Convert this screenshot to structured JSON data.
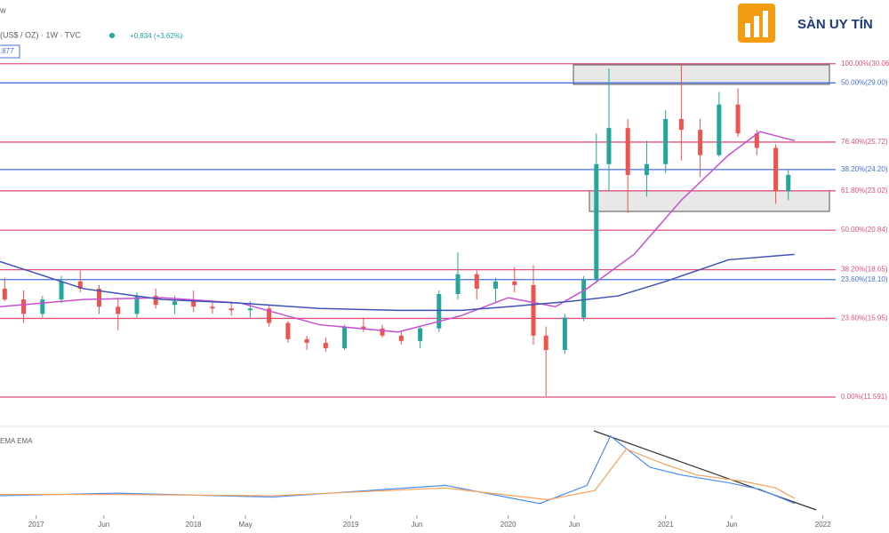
{
  "top_fragment": "w",
  "symbol": "(US$ / OZ) · 1W · TVC",
  "change": "+0.834 (+3.62%)",
  "last_price": ".877",
  "logo": "SÀN UY TÍN",
  "chart_data": {
    "type": "candlestick",
    "xlim": [
      2016.77,
      2022.42
    ],
    "ylim": [
      10.46,
      30.64
    ],
    "xticks": [
      2017,
      {
        "value": 2017.43,
        "label": "Jun"
      },
      2018,
      {
        "value": 2018.33,
        "label": "May"
      },
      2019,
      {
        "value": 2019.42,
        "label": "Jun"
      },
      2020,
      {
        "value": 2020.42,
        "label": "Jun"
      },
      2021,
      {
        "value": 2021.42,
        "label": "Jun"
      },
      2022
    ],
    "up_color": "#26a69a",
    "down_color": "#ef5350",
    "x": [
      2016.8,
      2016.92,
      2017.04,
      2017.16,
      2017.28,
      2017.4,
      2017.52,
      2017.64,
      2017.76,
      2017.88,
      2018.0,
      2018.12,
      2018.24,
      2018.36,
      2018.48,
      2018.6,
      2018.72,
      2018.84,
      2018.96,
      2019.08,
      2019.2,
      2019.32,
      2019.44,
      2019.56,
      2019.68,
      2019.8,
      2019.92,
      2020.04,
      2020.16,
      2020.24,
      2020.36,
      2020.48,
      2020.56,
      2020.64,
      2020.76,
      2020.88,
      2021.0,
      2021.1,
      2021.22,
      2021.34,
      2021.46,
      2021.58,
      2021.7,
      2021.78
    ],
    "open": [
      17.6,
      17.0,
      16.2,
      17.0,
      18.0,
      17.6,
      16.6,
      16.2,
      17.2,
      16.7,
      16.9,
      16.6,
      16.5,
      16.4,
      16.5,
      15.7,
      14.8,
      14.6,
      14.3,
      15.5,
      15.4,
      15.0,
      14.7,
      15.4,
      17.3,
      18.4,
      17.6,
      18.0,
      17.8,
      15.0,
      14.2,
      16.0,
      18.1,
      24.5,
      26.5,
      23.9,
      24.5,
      27.0,
      26.4,
      25.0,
      27.8,
      26.2,
      25.4,
      23.0
    ],
    "high": [
      18.2,
      17.5,
      17.2,
      18.3,
      18.6,
      17.8,
      17.1,
      17.4,
      17.6,
      17.2,
      17.5,
      16.9,
      16.9,
      16.9,
      16.7,
      15.8,
      15.0,
      14.9,
      15.6,
      16.0,
      15.6,
      15.2,
      15.5,
      17.5,
      19.6,
      18.6,
      18.2,
      18.8,
      18.9,
      15.5,
      16.2,
      18.3,
      26.2,
      29.8,
      27.0,
      25.8,
      27.5,
      30.1,
      27.0,
      28.5,
      28.7,
      26.4,
      25.6,
      24.2
    ],
    "low": [
      16.9,
      15.7,
      16.0,
      16.8,
      17.4,
      16.2,
      15.3,
      16.0,
      16.5,
      16.2,
      16.3,
      16.2,
      16.1,
      16.0,
      15.5,
      14.6,
      14.2,
      14.1,
      14.2,
      15.2,
      14.9,
      14.5,
      14.3,
      15.2,
      17.0,
      17.0,
      16.8,
      17.4,
      14.5,
      11.64,
      14.0,
      15.8,
      17.9,
      23.0,
      21.8,
      22.7,
      24.0,
      24.7,
      23.8,
      24.9,
      26.0,
      25.0,
      22.3,
      22.5
    ],
    "close": [
      17.0,
      16.2,
      17.0,
      18.0,
      17.6,
      16.6,
      16.2,
      17.2,
      16.7,
      16.9,
      16.6,
      16.5,
      16.4,
      16.5,
      15.7,
      14.8,
      14.6,
      14.3,
      15.5,
      15.4,
      15.0,
      14.7,
      15.4,
      17.3,
      18.4,
      17.6,
      18.0,
      17.8,
      15.0,
      14.2,
      16.0,
      18.1,
      24.5,
      26.5,
      23.9,
      24.5,
      27.0,
      26.4,
      25.0,
      27.8,
      26.2,
      25.4,
      23.0,
      23.9
    ],
    "overlays": [
      {
        "color": "#c74fd1",
        "x": [
          2016.77,
          2017.3,
          2017.8,
          2018.3,
          2018.8,
          2019.3,
          2019.7,
          2020.0,
          2020.3,
          2020.5,
          2020.8,
          2021.1,
          2021.4,
          2021.6,
          2021.82
        ],
        "values": [
          16.6,
          17.0,
          17.1,
          16.8,
          15.6,
          15.2,
          16.1,
          17.1,
          16.6,
          17.6,
          19.5,
          22.5,
          25.0,
          26.3,
          25.8
        ]
      },
      {
        "color": "#3f51b5",
        "x": [
          2016.77,
          2017.3,
          2017.8,
          2018.3,
          2018.8,
          2019.3,
          2019.7,
          2020.0,
          2020.4,
          2020.7,
          2021.0,
          2021.4,
          2021.82
        ],
        "values": [
          19.1,
          17.6,
          17.0,
          16.8,
          16.5,
          16.4,
          16.4,
          16.6,
          16.9,
          17.2,
          18.0,
          19.2,
          19.5
        ]
      }
    ],
    "fib_levels": [
      {
        "label": "100.00%(30.06)",
        "value": 30.06,
        "color": "#e0527c"
      },
      {
        "label": "50.00%(29.00)",
        "value": 29.0,
        "color": "#4a6fdc"
      },
      {
        "label": "76.40%(25.72)",
        "value": 25.72,
        "color": "#e0527c"
      },
      {
        "label": "38.20%(24.20)",
        "value": 24.2,
        "color": "#4a6fdc"
      },
      {
        "label": "61.80%(23.02)",
        "value": 23.02,
        "color": "#e0527c"
      },
      {
        "label": "50.00%(20.84)",
        "value": 20.84,
        "color": "#e0527c"
      },
      {
        "label": "38.20%(18.65)",
        "value": 18.65,
        "color": "#e0527c"
      },
      {
        "label": "23.60%(18.10)",
        "value": 18.1,
        "color": "#4a6fdc"
      },
      {
        "label": "23.60%(15.95)",
        "value": 15.95,
        "color": "#e0527c"
      },
      {
        "label": "0.00%(11.591)",
        "value": 11.591,
        "color": "#e0527c"
      }
    ],
    "oscillator": {
      "title": "EMA EMA",
      "ylim": [
        -1.5,
        5
      ],
      "series": [
        {
          "color": "#4c8df6",
          "x": [
            2016.77,
            2017.5,
            2018.5,
            2019.6,
            2020.2,
            2020.5,
            2020.65,
            2020.9,
            2021.1,
            2021.4,
            2021.6,
            2021.82
          ],
          "values": [
            0,
            0.2,
            -0.1,
            0.8,
            -0.6,
            0.8,
            4.6,
            2.2,
            1.6,
            1.0,
            0.5,
            -0.6
          ]
        },
        {
          "color": "#f5a25d",
          "x": [
            2016.77,
            2017.5,
            2018.5,
            2019.6,
            2020.25,
            2020.55,
            2020.75,
            2021.0,
            2021.2,
            2021.5,
            2021.7,
            2021.82
          ],
          "values": [
            0.1,
            0.1,
            0,
            0.6,
            -0.3,
            0.4,
            3.6,
            2.4,
            1.6,
            1.1,
            0.6,
            -0.2
          ]
        }
      ]
    }
  }
}
